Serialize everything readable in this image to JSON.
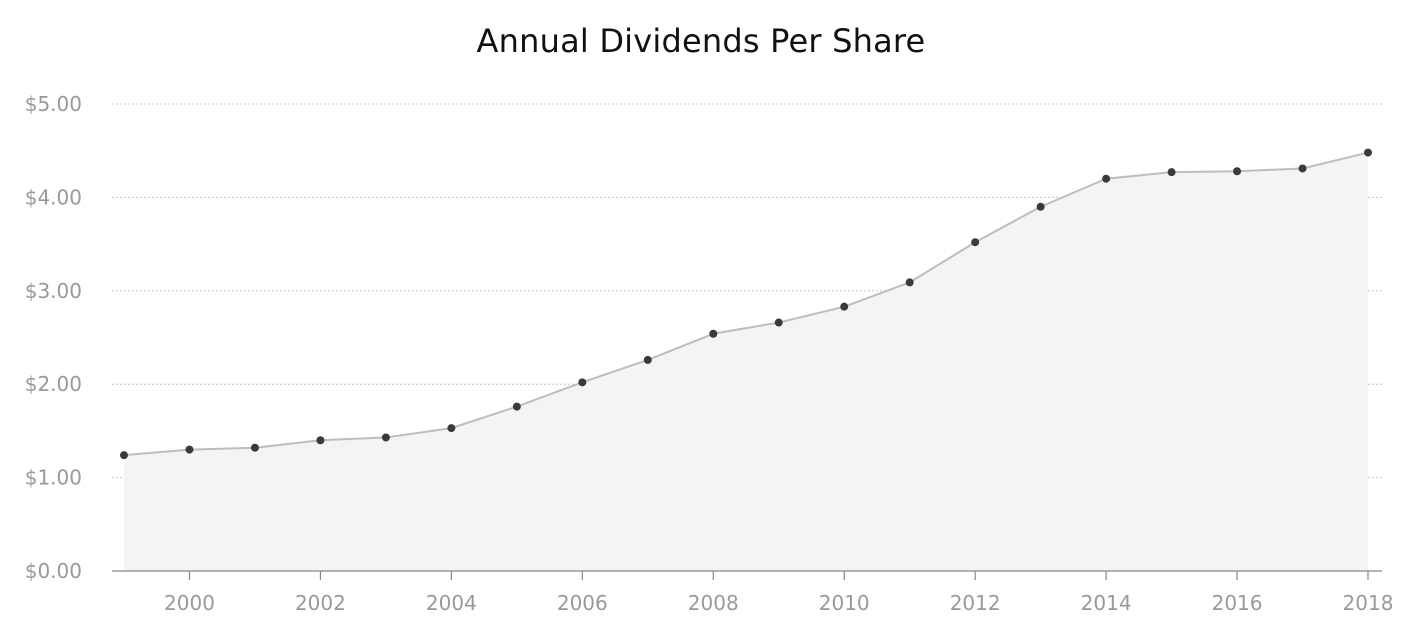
{
  "chart_data": {
    "type": "area",
    "title": "Annual Dividends Per Share",
    "xlabel": "",
    "ylabel": "",
    "x": [
      1999,
      2000,
      2001,
      2002,
      2003,
      2004,
      2005,
      2006,
      2007,
      2008,
      2009,
      2010,
      2011,
      2012,
      2013,
      2014,
      2015,
      2016,
      2017,
      2018
    ],
    "values": [
      1.24,
      1.3,
      1.32,
      1.4,
      1.43,
      1.53,
      1.76,
      2.02,
      2.26,
      2.54,
      2.66,
      2.83,
      3.09,
      3.52,
      3.9,
      4.2,
      4.27,
      4.28,
      4.31,
      4.48
    ],
    "ylim": [
      0,
      5
    ],
    "xlim": [
      1999,
      2018
    ],
    "yticks": [
      0,
      1,
      2,
      3,
      4,
      5
    ],
    "ytick_labels": [
      "$0.00",
      "$1.00",
      "$2.00",
      "$3.00",
      "$4.00",
      "$5.00"
    ],
    "xticks": [
      2000,
      2002,
      2004,
      2006,
      2008,
      2010,
      2012,
      2014,
      2016,
      2018
    ],
    "xtick_labels": [
      "2000",
      "2002",
      "2004",
      "2006",
      "2008",
      "2010",
      "2012",
      "2014",
      "2016",
      "2018"
    ],
    "grid": true,
    "legend": "none",
    "colors": {
      "line": "#bdbdbd",
      "fill": "#f4f4f4",
      "marker": "#3a3a3a",
      "grid": "#c8c8c8",
      "axis": "#888888",
      "tick_label": "#999999",
      "title": "#111111"
    }
  }
}
